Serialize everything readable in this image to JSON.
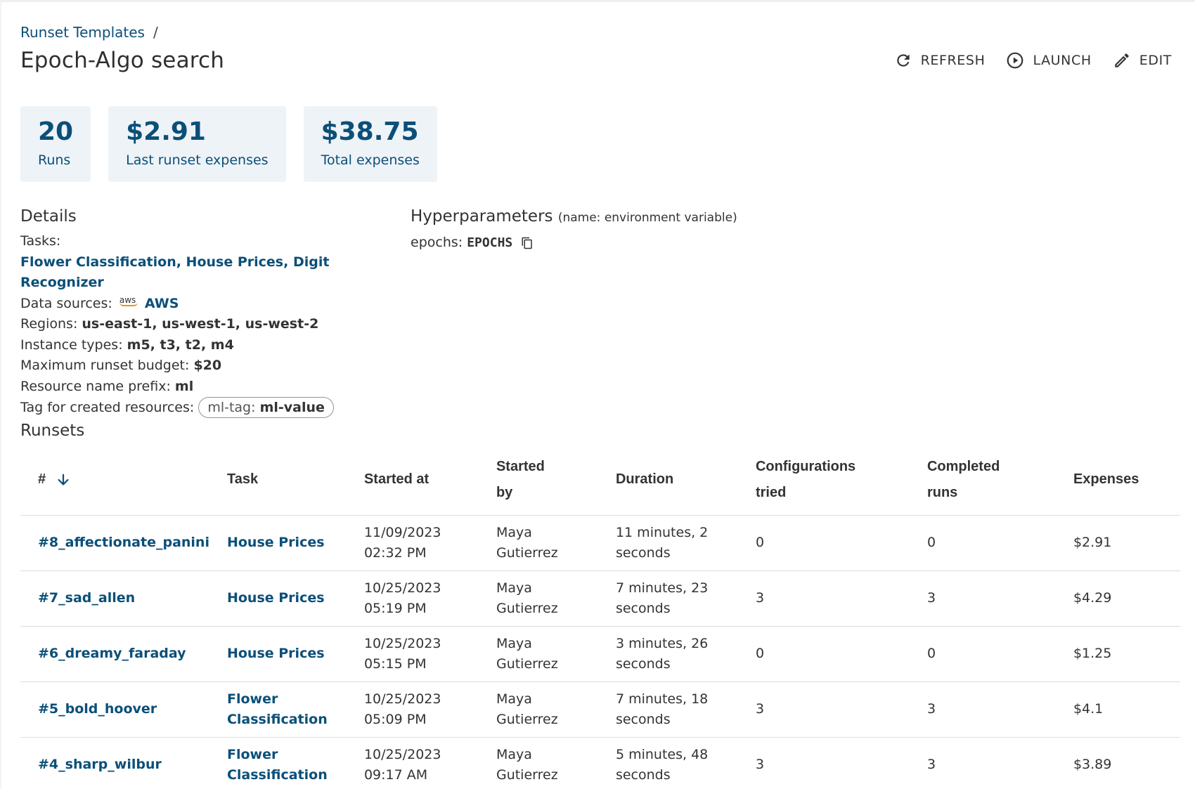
{
  "breadcrumb": {
    "parent": "Runset Templates",
    "separator": "/"
  },
  "title": "Epoch-Algo search",
  "actions": {
    "refresh": "REFRESH",
    "launch": "LAUNCH",
    "edit": "EDIT"
  },
  "stats": [
    {
      "value": "20",
      "label": "Runs"
    },
    {
      "value": "$2.91",
      "label": "Last runset expenses"
    },
    {
      "value": "$38.75",
      "label": "Total expenses"
    }
  ],
  "details": {
    "heading": "Details",
    "tasks_label": "Tasks:",
    "tasks_value": "Flower Classification, House Prices, Digit Recognizer",
    "data_sources_label": "Data sources:",
    "aws_logo_text": "aws",
    "data_sources_value": "AWS",
    "regions_label": "Regions:",
    "regions_value": "us-east-1, us-west-1, us-west-2",
    "instance_label": "Instance types:",
    "instance_value": "m5, t3, t2, m4",
    "budget_label": "Maximum runset budget:",
    "budget_value": "$20",
    "prefix_label": "Resource name prefix:",
    "prefix_value": "ml",
    "tag_label": "Tag for created resources:",
    "tag_key": "ml-tag:",
    "tag_value": "ml-value"
  },
  "hyperparameters": {
    "heading": "Hyperparameters",
    "heading_note": "(name: environment variable)",
    "param_name": "epochs:",
    "param_env": "EPOCHS"
  },
  "runsets": {
    "heading": "Runsets",
    "columns": {
      "num": "#",
      "task": "Task",
      "started_at": "Started at",
      "started_by_1": "Started",
      "started_by_2": "by",
      "duration": "Duration",
      "configs_1": "Configurations",
      "configs_2": "tried",
      "completed_1": "Completed",
      "completed_2": "runs",
      "expenses": "Expenses"
    },
    "rows": [
      {
        "name": "#8_affectionate_panini",
        "task": "House Prices",
        "date": "11/09/2023",
        "time": "02:32 PM",
        "by1": "Maya",
        "by2": "Gutierrez",
        "dur1": "11 minutes, 2",
        "dur2": "seconds",
        "configs": "0",
        "completed": "0",
        "expenses": "$2.91"
      },
      {
        "name": "#7_sad_allen",
        "task": "House Prices",
        "date": "10/25/2023",
        "time": "05:19 PM",
        "by1": "Maya",
        "by2": "Gutierrez",
        "dur1": "7 minutes, 23",
        "dur2": "seconds",
        "configs": "3",
        "completed": "3",
        "expenses": "$4.29"
      },
      {
        "name": "#6_dreamy_faraday",
        "task": "House Prices",
        "date": "10/25/2023",
        "time": "05:15 PM",
        "by1": "Maya",
        "by2": "Gutierrez",
        "dur1": "3 minutes, 26",
        "dur2": "seconds",
        "configs": "0",
        "completed": "0",
        "expenses": "$1.25"
      },
      {
        "name": "#5_bold_hoover",
        "task": "Flower Classification",
        "task1": "Flower",
        "task2": "Classification",
        "date": "10/25/2023",
        "time": "05:09 PM",
        "by1": "Maya",
        "by2": "Gutierrez",
        "dur1": "7 minutes, 18",
        "dur2": "seconds",
        "configs": "3",
        "completed": "3",
        "expenses": "$4.1"
      },
      {
        "name": "#4_sharp_wilbur",
        "task": "Flower Classification",
        "task1": "Flower",
        "task2": "Classification",
        "date": "10/25/2023",
        "time": "09:17 AM",
        "by1": "Maya",
        "by2": "Gutierrez",
        "dur1": "5 minutes, 48",
        "dur2": "seconds",
        "configs": "3",
        "completed": "3",
        "expenses": "$3.89"
      }
    ]
  }
}
